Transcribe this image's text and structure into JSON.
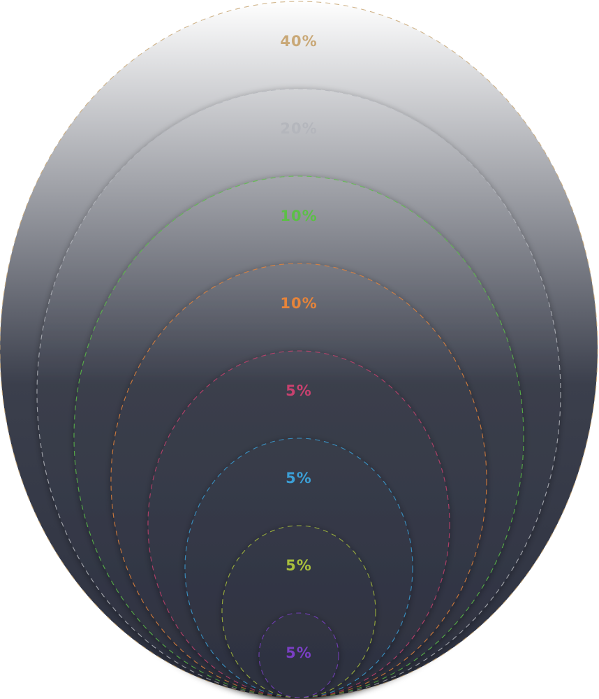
{
  "chart_data": {
    "type": "nested-ellipse",
    "title": "",
    "categories": [
      "40%",
      "20%",
      "10%",
      "10%",
      "5%",
      "5%",
      "5%",
      "5%"
    ],
    "values": [
      40,
      20,
      10,
      10,
      5,
      5,
      5,
      5
    ],
    "series": [
      {
        "label": "40%",
        "value": 40,
        "color": "#c9a877"
      },
      {
        "label": "20%",
        "value": 20,
        "color": "#b4b6bc"
      },
      {
        "label": "10%",
        "value": 10,
        "color": "#5cbf47"
      },
      {
        "label": "10%",
        "value": 10,
        "color": "#e6843a"
      },
      {
        "label": "5%",
        "value": 5,
        "color": "#c8416f"
      },
      {
        "label": "5%",
        "value": 5,
        "color": "#3b9fd6"
      },
      {
        "label": "5%",
        "value": 5,
        "color": "#a9bf3c"
      },
      {
        "label": "5%",
        "value": 5,
        "color": "#7a3fc4"
      }
    ],
    "legend": false,
    "grid": false
  },
  "colors": {
    "fill_top": "#ffffff",
    "fill_mid": "#3b3f4c",
    "fill_bottom": "#2d3140"
  }
}
